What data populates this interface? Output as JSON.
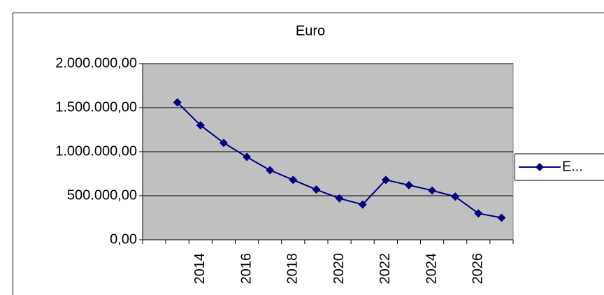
{
  "chart_data": {
    "type": "line",
    "title": "Euro",
    "categories": [
      null,
      null,
      2014,
      null,
      2016,
      null,
      2018,
      null,
      2020,
      null,
      2022,
      null,
      2024,
      null,
      2026,
      null
    ],
    "series": [
      {
        "name": "E...",
        "color": "#000080",
        "values": [
          null,
          1560000,
          1300000,
          1100000,
          940000,
          790000,
          680000,
          570000,
          470000,
          400000,
          680000,
          620000,
          560000,
          490000,
          300000,
          250000
        ]
      }
    ],
    "ylim": [
      0,
      2000000
    ],
    "yticks": [
      {
        "value": 0,
        "label": "0,00"
      },
      {
        "value": 500000,
        "label": "500.000,00"
      },
      {
        "value": 1000000,
        "label": "1.000.000,00"
      },
      {
        "value": 1500000,
        "label": "1.500.000,00"
      },
      {
        "value": 2000000,
        "label": "2.000.000,00"
      }
    ],
    "grid": true,
    "plot_background": "#c0c0c0",
    "legend": "right"
  }
}
